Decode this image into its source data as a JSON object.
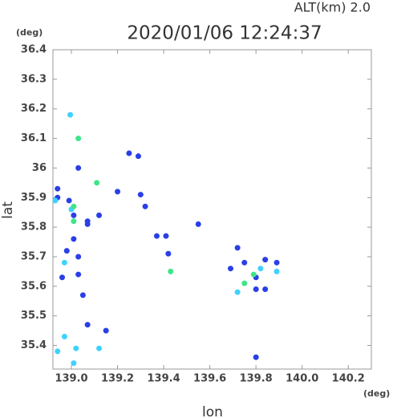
{
  "chart_data": {
    "type": "scatter",
    "title": "2020/01/06 12:24:37",
    "subtitle": "ALT(km)  2.0",
    "y_unit": "(deg)",
    "x_unit": "(deg)",
    "xlabel": "lon",
    "ylabel": "lat",
    "xlim": [
      138.92,
      140.3
    ],
    "ylim": [
      35.32,
      36.4
    ],
    "xticks": [
      {
        "value": 139,
        "label": "139.0"
      },
      139.2,
      139.4,
      139.6,
      139.8,
      {
        "value": 140,
        "label": "140.0"
      },
      140.2
    ],
    "yticks": [
      35.4,
      35.5,
      35.6,
      35.7,
      35.8,
      35.9,
      36.0,
      36.1,
      36.2,
      36.3,
      36.4
    ],
    "series": [
      {
        "name": "blue",
        "color": "#2a3fe6",
        "x": [
          139.03,
          138.94,
          138.94,
          138.99,
          139.01,
          139.07,
          139.01,
          138.98,
          139.03,
          139.07,
          138.96,
          139.03,
          139.05,
          139.07,
          139.2,
          139.3,
          139.29,
          139.32,
          139.12,
          139.55,
          139.41,
          139.42,
          139.72,
          139.75,
          139.84,
          139.89,
          139.8,
          139.8,
          139.84,
          139.8,
          139.15,
          139.25,
          139.37,
          139.69
        ],
        "values": [
          36.0,
          35.93,
          35.9,
          35.89,
          35.84,
          35.81,
          35.76,
          35.72,
          35.7,
          35.82,
          35.63,
          35.64,
          35.57,
          35.47,
          35.92,
          35.91,
          36.04,
          35.87,
          35.84,
          35.81,
          35.77,
          35.71,
          35.73,
          35.68,
          35.69,
          35.68,
          35.63,
          35.59,
          35.59,
          35.36,
          35.45,
          36.05,
          35.77,
          35.66
        ]
      },
      {
        "name": "cyan",
        "color": "#3fd2ff",
        "x": [
          138.995,
          138.97,
          138.97,
          139.02,
          139.01,
          138.94,
          139.12,
          139.0,
          138.93,
          139.82,
          139.72,
          139.89
        ],
        "values": [
          36.18,
          35.68,
          35.43,
          35.39,
          35.34,
          35.38,
          35.39,
          35.86,
          35.89,
          35.66,
          35.58,
          35.65
        ]
      },
      {
        "name": "green",
        "color": "#40e48a",
        "x": [
          139.03,
          139.11,
          139.01,
          139.01,
          139.79,
          139.75,
          139.43
        ],
        "values": [
          36.1,
          35.95,
          35.87,
          35.82,
          35.64,
          35.61,
          35.65
        ]
      }
    ]
  }
}
